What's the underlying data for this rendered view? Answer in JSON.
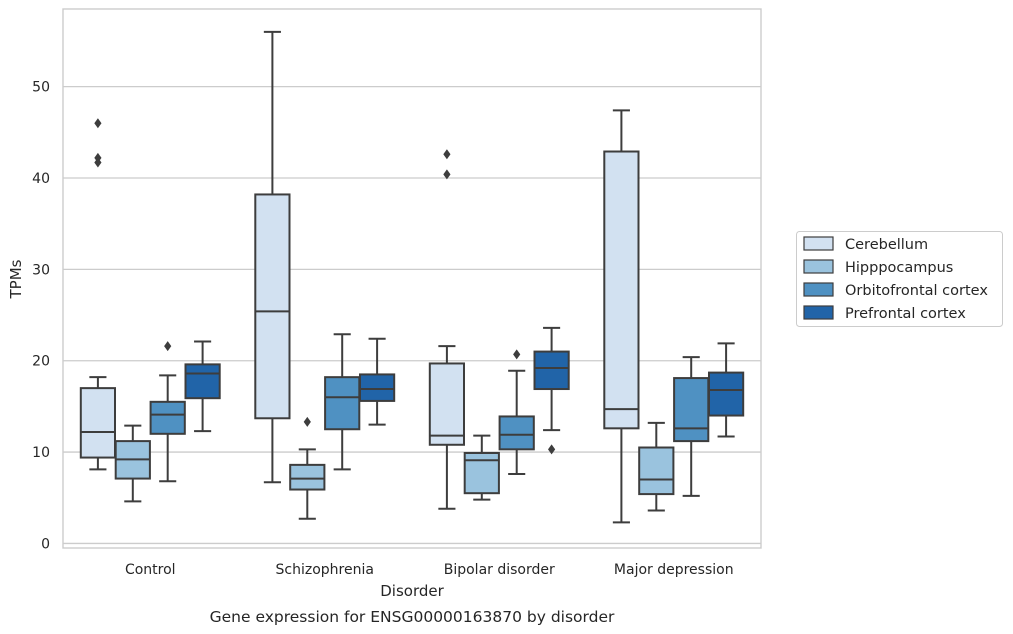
{
  "chart_data": {
    "type": "box",
    "title": "",
    "caption": "Gene expression for ENSG00000163870 by disorder",
    "xlabel": "Disorder",
    "ylabel": "TPMs",
    "ylim": [
      -0.5,
      58.5
    ],
    "yticks": [
      0,
      10,
      20,
      30,
      40,
      50
    ],
    "grid": "horizontal",
    "legend_position": "right",
    "categories": [
      "Control",
      "Schizophrenia",
      "Bipolar disorder",
      "Major depression"
    ],
    "series": [
      {
        "name": "Cerebellum",
        "color": "#d2e1f1",
        "boxes": [
          {
            "whislo": 8.1,
            "q1": 9.4,
            "med": 12.2,
            "q3": 17.0,
            "whishi": 18.2,
            "fliers": [
              41.7,
              42.2,
              46.0
            ]
          },
          {
            "whislo": 6.7,
            "q1": 13.7,
            "med": 25.4,
            "q3": 38.2,
            "whishi": 56.0,
            "fliers": []
          },
          {
            "whislo": 3.8,
            "q1": 10.8,
            "med": 11.8,
            "q3": 19.7,
            "whishi": 21.6,
            "fliers": [
              40.4,
              42.6
            ]
          },
          {
            "whislo": 2.3,
            "q1": 12.6,
            "med": 14.7,
            "q3": 42.9,
            "whishi": 47.4,
            "fliers": []
          }
        ]
      },
      {
        "name": "Hipppocampus",
        "color": "#9ac3de",
        "boxes": [
          {
            "whislo": 4.6,
            "q1": 7.1,
            "med": 9.2,
            "q3": 11.2,
            "whishi": 12.9,
            "fliers": []
          },
          {
            "whislo": 2.7,
            "q1": 5.9,
            "med": 7.1,
            "q3": 8.6,
            "whishi": 10.3,
            "fliers": [
              13.3
            ]
          },
          {
            "whislo": 4.8,
            "q1": 5.5,
            "med": 9.1,
            "q3": 9.9,
            "whishi": 11.8,
            "fliers": []
          },
          {
            "whislo": 3.6,
            "q1": 5.4,
            "med": 7.0,
            "q3": 10.5,
            "whishi": 13.2,
            "fliers": []
          }
        ]
      },
      {
        "name": "Orbitofrontal cortex",
        "color": "#4f91c2",
        "boxes": [
          {
            "whislo": 6.8,
            "q1": 12.0,
            "med": 14.1,
            "q3": 15.5,
            "whishi": 18.4,
            "fliers": [
              21.6
            ]
          },
          {
            "whislo": 8.1,
            "q1": 12.5,
            "med": 16.0,
            "q3": 18.2,
            "whishi": 22.9,
            "fliers": []
          },
          {
            "whislo": 7.6,
            "q1": 10.3,
            "med": 11.9,
            "q3": 13.9,
            "whishi": 18.9,
            "fliers": [
              20.7
            ]
          },
          {
            "whislo": 5.2,
            "q1": 11.2,
            "med": 12.6,
            "q3": 18.1,
            "whishi": 20.4,
            "fliers": []
          }
        ]
      },
      {
        "name": "Prefrontal cortex",
        "color": "#2164a8",
        "boxes": [
          {
            "whislo": 12.3,
            "q1": 15.9,
            "med": 18.6,
            "q3": 19.6,
            "whishi": 22.1,
            "fliers": []
          },
          {
            "whislo": 13.0,
            "q1": 15.6,
            "med": 16.9,
            "q3": 18.5,
            "whishi": 22.4,
            "fliers": []
          },
          {
            "whislo": 12.4,
            "q1": 16.9,
            "med": 19.2,
            "q3": 21.0,
            "whishi": 23.6,
            "fliers": [
              10.3
            ]
          },
          {
            "whislo": 11.7,
            "q1": 14.0,
            "med": 16.8,
            "q3": 18.7,
            "whishi": 21.9,
            "fliers": []
          }
        ]
      }
    ]
  }
}
